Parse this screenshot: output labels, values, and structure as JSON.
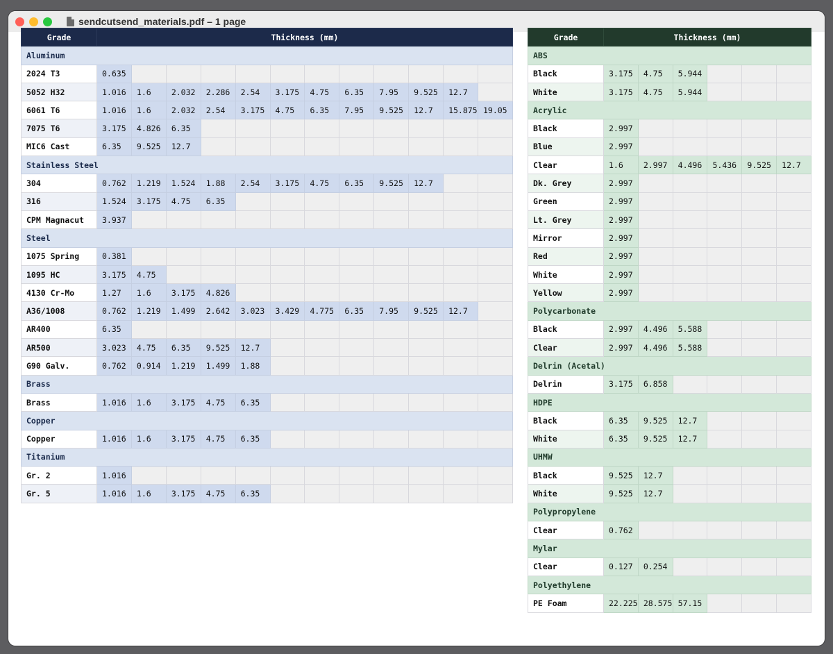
{
  "window": {
    "title": "sendcutsend_materials.pdf – 1 page"
  },
  "headers": {
    "grade": "Grade",
    "thickness": "Thickness (mm)"
  },
  "metals": {
    "columns": 12,
    "groups": [
      {
        "name": "Aluminum",
        "rows": [
          {
            "grade": "2024 T3",
            "values": [
              "0.635"
            ]
          },
          {
            "grade": "5052 H32",
            "values": [
              "1.016",
              "1.6",
              "2.032",
              "2.286",
              "2.54",
              "3.175",
              "4.75",
              "6.35",
              "7.95",
              "9.525",
              "12.7"
            ]
          },
          {
            "grade": "6061 T6",
            "values": [
              "1.016",
              "1.6",
              "2.032",
              "2.54",
              "3.175",
              "4.75",
              "6.35",
              "7.95",
              "9.525",
              "12.7",
              "15.875",
              "19.05"
            ]
          },
          {
            "grade": "7075 T6",
            "values": [
              "3.175",
              "4.826",
              "6.35"
            ]
          },
          {
            "grade": "MIC6 Cast",
            "values": [
              "6.35",
              "9.525",
              "12.7"
            ]
          }
        ]
      },
      {
        "name": "Stainless Steel",
        "rows": [
          {
            "grade": "304",
            "values": [
              "0.762",
              "1.219",
              "1.524",
              "1.88",
              "2.54",
              "3.175",
              "4.75",
              "6.35",
              "9.525",
              "12.7"
            ]
          },
          {
            "grade": "316",
            "values": [
              "1.524",
              "3.175",
              "4.75",
              "6.35"
            ]
          },
          {
            "grade": "CPM Magnacut",
            "values": [
              "3.937"
            ]
          }
        ]
      },
      {
        "name": "Steel",
        "rows": [
          {
            "grade": "1075 Spring",
            "values": [
              "0.381"
            ]
          },
          {
            "grade": "1095 HC",
            "values": [
              "3.175",
              "4.75"
            ]
          },
          {
            "grade": "4130 Cr-Mo",
            "values": [
              "1.27",
              "1.6",
              "3.175",
              "4.826"
            ]
          },
          {
            "grade": "A36/1008",
            "values": [
              "0.762",
              "1.219",
              "1.499",
              "2.642",
              "3.023",
              "3.429",
              "4.775",
              "6.35",
              "7.95",
              "9.525",
              "12.7"
            ]
          },
          {
            "grade": "AR400",
            "values": [
              "6.35"
            ]
          },
          {
            "grade": "AR500",
            "values": [
              "3.023",
              "4.75",
              "6.35",
              "9.525",
              "12.7"
            ]
          },
          {
            "grade": "G90 Galv.",
            "values": [
              "0.762",
              "0.914",
              "1.219",
              "1.499",
              "1.88"
            ]
          }
        ]
      },
      {
        "name": "Brass",
        "rows": [
          {
            "grade": "Brass",
            "values": [
              "1.016",
              "1.6",
              "3.175",
              "4.75",
              "6.35"
            ]
          }
        ]
      },
      {
        "name": "Copper",
        "rows": [
          {
            "grade": "Copper",
            "values": [
              "1.016",
              "1.6",
              "3.175",
              "4.75",
              "6.35"
            ]
          }
        ]
      },
      {
        "name": "Titanium",
        "rows": [
          {
            "grade": "Gr. 2",
            "values": [
              "1.016"
            ]
          },
          {
            "grade": "Gr. 5",
            "values": [
              "1.016",
              "1.6",
              "3.175",
              "4.75",
              "6.35"
            ]
          }
        ]
      }
    ]
  },
  "plastics": {
    "columns": 6,
    "groups": [
      {
        "name": "ABS",
        "rows": [
          {
            "grade": "Black",
            "values": [
              "3.175",
              "4.75",
              "5.944"
            ]
          },
          {
            "grade": "White",
            "values": [
              "3.175",
              "4.75",
              "5.944"
            ]
          }
        ]
      },
      {
        "name": "Acrylic",
        "rows": [
          {
            "grade": "Black",
            "values": [
              "2.997"
            ]
          },
          {
            "grade": "Blue",
            "values": [
              "2.997"
            ]
          },
          {
            "grade": "Clear",
            "values": [
              "1.6",
              "2.997",
              "4.496",
              "5.436",
              "9.525",
              "12.7"
            ]
          },
          {
            "grade": "Dk. Grey",
            "values": [
              "2.997"
            ]
          },
          {
            "grade": "Green",
            "values": [
              "2.997"
            ]
          },
          {
            "grade": "Lt. Grey",
            "values": [
              "2.997"
            ]
          },
          {
            "grade": "Mirror",
            "values": [
              "2.997"
            ]
          },
          {
            "grade": "Red",
            "values": [
              "2.997"
            ]
          },
          {
            "grade": "White",
            "values": [
              "2.997"
            ]
          },
          {
            "grade": "Yellow",
            "values": [
              "2.997"
            ]
          }
        ]
      },
      {
        "name": "Polycarbonate",
        "rows": [
          {
            "grade": "Black",
            "values": [
              "2.997",
              "4.496",
              "5.588"
            ]
          },
          {
            "grade": "Clear",
            "values": [
              "2.997",
              "4.496",
              "5.588"
            ]
          }
        ]
      },
      {
        "name": "Delrin (Acetal)",
        "rows": [
          {
            "grade": "Delrin",
            "values": [
              "3.175",
              "6.858"
            ]
          }
        ]
      },
      {
        "name": "HDPE",
        "rows": [
          {
            "grade": "Black",
            "values": [
              "6.35",
              "9.525",
              "12.7"
            ]
          },
          {
            "grade": "White",
            "values": [
              "6.35",
              "9.525",
              "12.7"
            ]
          }
        ]
      },
      {
        "name": "UHMW",
        "rows": [
          {
            "grade": "Black",
            "values": [
              "9.525",
              "12.7"
            ]
          },
          {
            "grade": "White",
            "values": [
              "9.525",
              "12.7"
            ]
          }
        ]
      },
      {
        "name": "Polypropylene",
        "rows": [
          {
            "grade": "Clear",
            "values": [
              "0.762"
            ]
          }
        ]
      },
      {
        "name": "Mylar",
        "rows": [
          {
            "grade": "Clear",
            "values": [
              "0.127",
              "0.254"
            ]
          }
        ]
      },
      {
        "name": "Polyethylene",
        "rows": [
          {
            "grade": "PE Foam",
            "values": [
              "22.225",
              "28.575",
              "57.15"
            ]
          }
        ]
      }
    ]
  }
}
